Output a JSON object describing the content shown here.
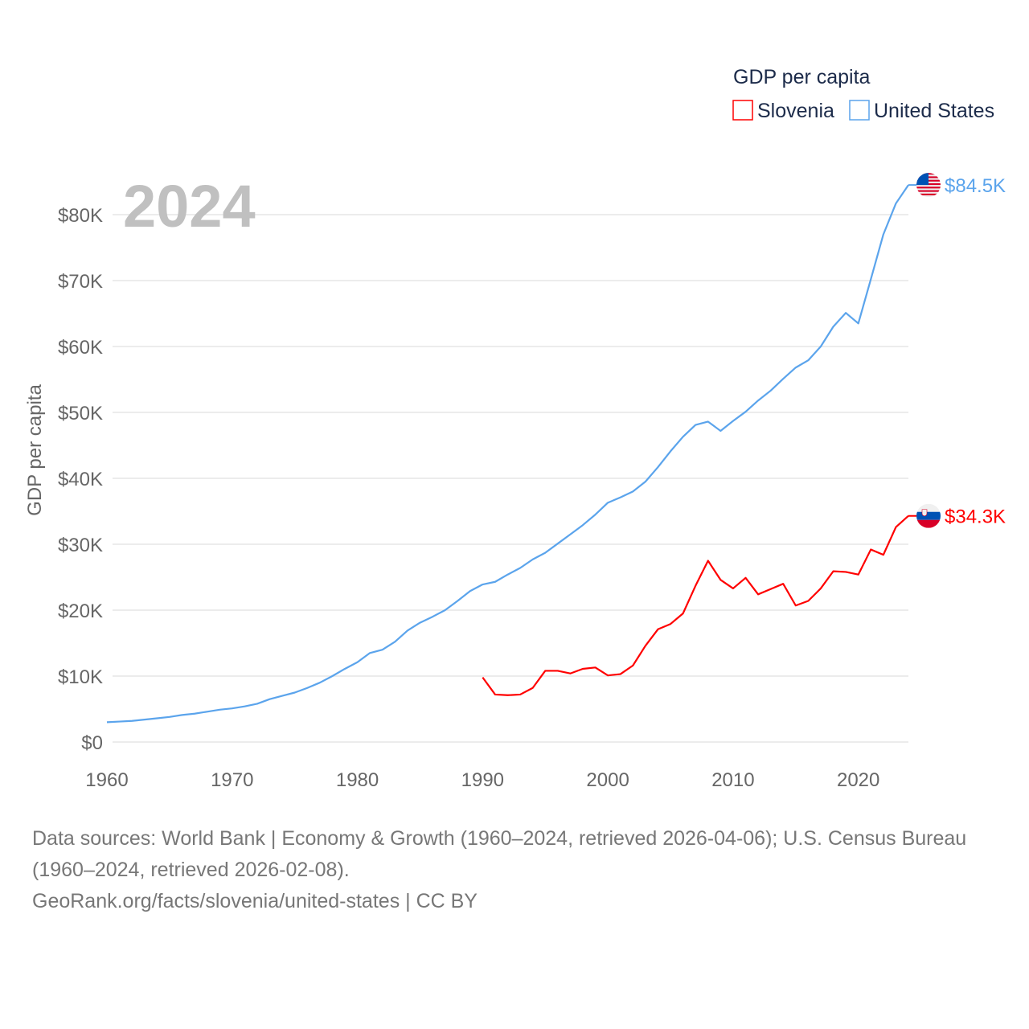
{
  "chart_data": {
    "type": "line",
    "legend_title": "GDP per capita",
    "legend_position": "top-right",
    "ylabel": "GDP per capita",
    "year_label": "2024",
    "xlim": [
      1960,
      2024
    ],
    "ylim": [
      0,
      85
    ],
    "x_ticks": [
      1960,
      1970,
      1980,
      1990,
      2000,
      2010,
      2020
    ],
    "x_tick_labels": [
      "1960",
      "1970",
      "1980",
      "1990",
      "2000",
      "2010",
      "2020"
    ],
    "y_ticks": [
      0,
      10,
      20,
      30,
      40,
      50,
      60,
      70,
      80
    ],
    "y_tick_labels": [
      "$0",
      "$10K",
      "$20K",
      "$30K",
      "$40K",
      "$50K",
      "$60K",
      "$70K",
      "$80K"
    ],
    "series": [
      {
        "name": "Slovenia",
        "color": "#ff0000",
        "end_label": "$34.3K",
        "flag": "slovenia-flag",
        "x": [
          1990,
          1991,
          1992,
          1993,
          1994,
          1995,
          1996,
          1997,
          1998,
          1999,
          2000,
          2001,
          2002,
          2003,
          2004,
          2005,
          2006,
          2007,
          2008,
          2009,
          2010,
          2011,
          2012,
          2013,
          2014,
          2015,
          2016,
          2017,
          2018,
          2019,
          2020,
          2021,
          2022,
          2023,
          2024
        ],
        "values": [
          9.8,
          7.2,
          7.1,
          7.2,
          8.2,
          10.8,
          10.8,
          10.4,
          11.1,
          11.3,
          10.1,
          10.3,
          11.6,
          14.6,
          17.1,
          17.9,
          19.5,
          23.7,
          27.5,
          24.6,
          23.3,
          24.9,
          22.4,
          23.2,
          24.0,
          20.7,
          21.4,
          23.3,
          25.9,
          25.8,
          25.4,
          29.2,
          28.4,
          32.6,
          34.3
        ]
      },
      {
        "name": "United States",
        "color": "#5ba4ec",
        "end_label": "$84.5K",
        "flag": "usa-flag",
        "x": [
          1960,
          1961,
          1962,
          1963,
          1964,
          1965,
          1966,
          1967,
          1968,
          1969,
          1970,
          1971,
          1972,
          1973,
          1974,
          1975,
          1976,
          1977,
          1978,
          1979,
          1980,
          1981,
          1982,
          1983,
          1984,
          1985,
          1986,
          1987,
          1988,
          1989,
          1990,
          1991,
          1992,
          1993,
          1994,
          1995,
          1996,
          1997,
          1998,
          1999,
          2000,
          2001,
          2002,
          2003,
          2004,
          2005,
          2006,
          2007,
          2008,
          2009,
          2010,
          2011,
          2012,
          2013,
          2014,
          2015,
          2016,
          2017,
          2018,
          2019,
          2020,
          2021,
          2022,
          2023,
          2024
        ],
        "values": [
          3.0,
          3.1,
          3.2,
          3.4,
          3.6,
          3.8,
          4.1,
          4.3,
          4.6,
          4.9,
          5.1,
          5.4,
          5.8,
          6.5,
          7.0,
          7.5,
          8.2,
          9.0,
          10.0,
          11.1,
          12.1,
          13.5,
          14.0,
          15.2,
          16.9,
          18.1,
          19.0,
          20.0,
          21.4,
          22.9,
          23.9,
          24.3,
          25.4,
          26.4,
          27.7,
          28.7,
          30.1,
          31.5,
          32.9,
          34.5,
          36.3,
          37.1,
          38.0,
          39.5,
          41.7,
          44.1,
          46.3,
          48.1,
          48.6,
          47.2,
          48.7,
          50.1,
          51.8,
          53.3,
          55.1,
          56.8,
          57.9,
          60.0,
          63.0,
          65.1,
          63.5,
          70.2,
          77.0,
          81.7,
          84.5
        ]
      }
    ]
  },
  "footer": {
    "sources": "Data sources: World Bank | Economy & Growth (1960–2024, retrieved 2026-04-06); U.S. Census Bureau (1960–2024, retrieved 2026-02-08).",
    "credit": "GeoRank.org/facts/slovenia/united-states | CC BY"
  }
}
